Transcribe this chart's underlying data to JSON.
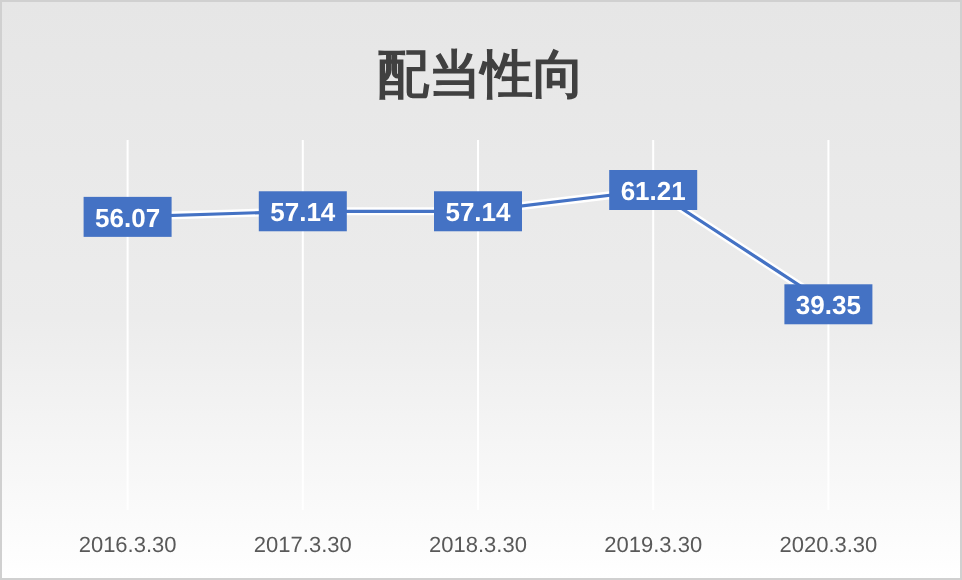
{
  "chart_data": {
    "type": "line",
    "title": "配当性向",
    "categories": [
      "2016.3.30",
      "2017.3.30",
      "2018.3.30",
      "2019.3.30",
      "2020.3.30"
    ],
    "values": [
      56.07,
      57.14,
      57.14,
      61.21,
      39.35
    ],
    "color": "#4472c4",
    "data_labels": true,
    "grid": "x",
    "marker": "square"
  }
}
